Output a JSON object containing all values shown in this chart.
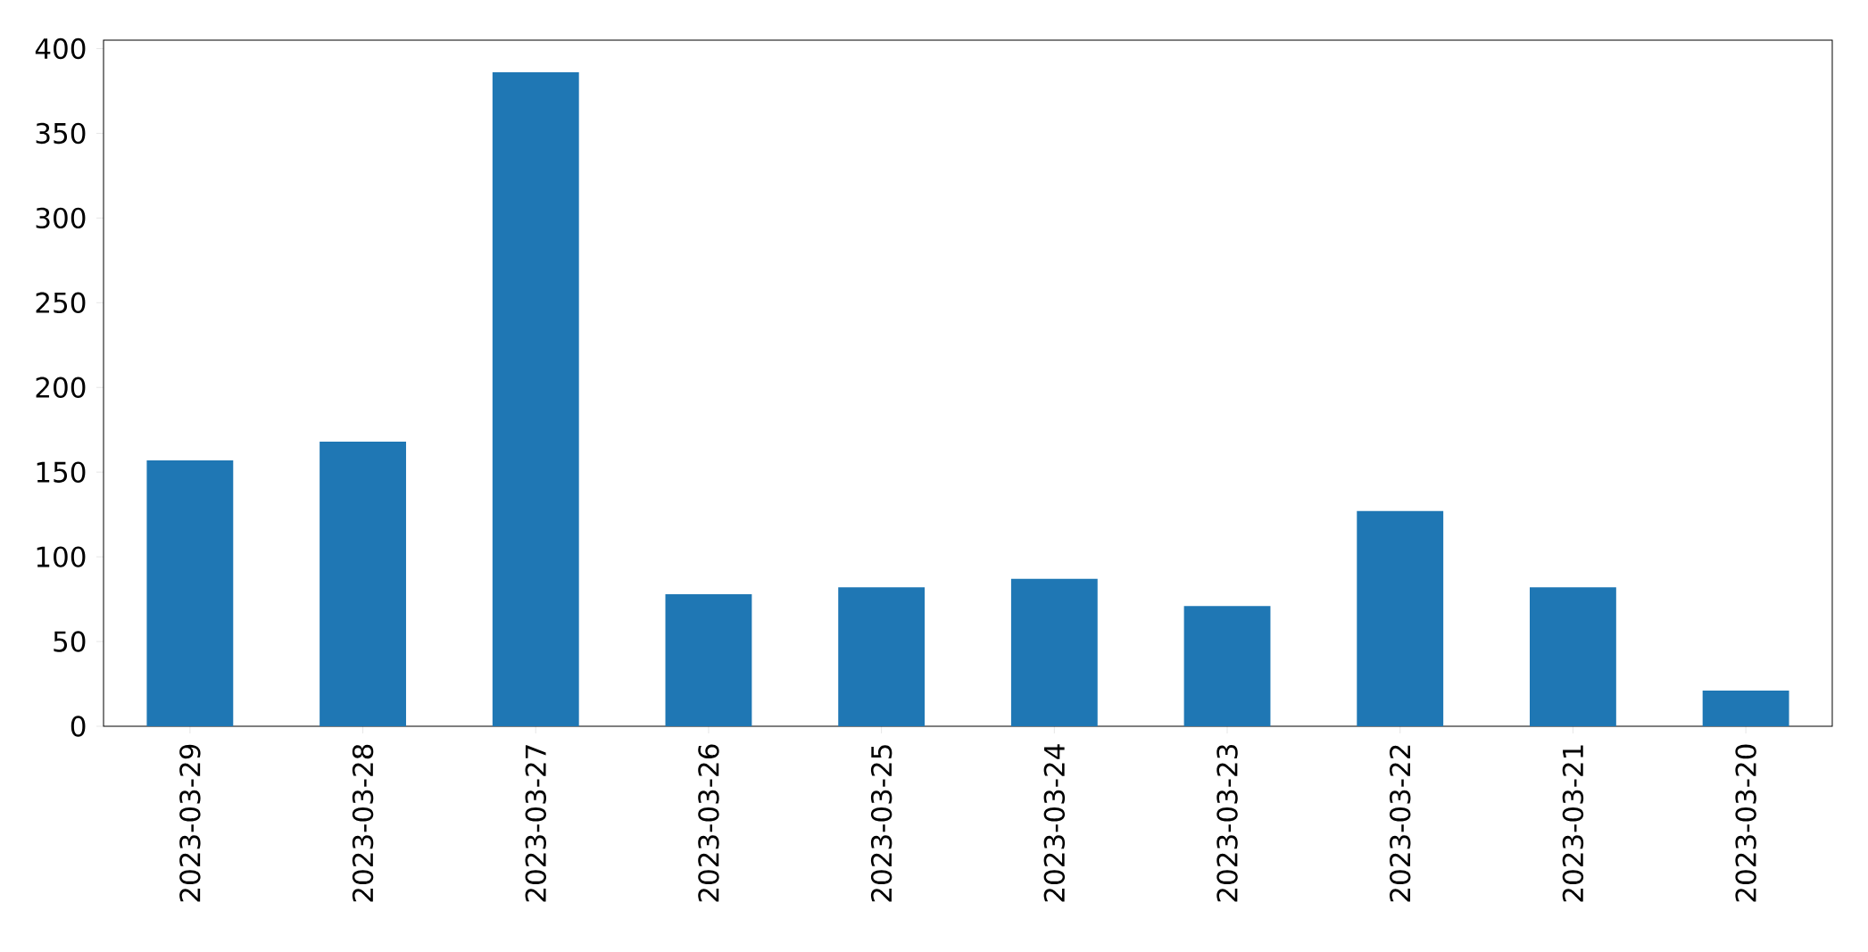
{
  "chart_data": {
    "type": "bar",
    "categories": [
      "2023-03-29",
      "2023-03-28",
      "2023-03-27",
      "2023-03-26",
      "2023-03-25",
      "2023-03-24",
      "2023-03-23",
      "2023-03-22",
      "2023-03-21",
      "2023-03-20"
    ],
    "values": [
      157,
      168,
      386,
      78,
      82,
      87,
      71,
      127,
      82,
      21
    ],
    "color": "#1f77b4",
    "ylim": [
      0,
      405
    ],
    "yticks": [
      0,
      50,
      100,
      150,
      200,
      250,
      300,
      350,
      400
    ],
    "grid": false
  }
}
